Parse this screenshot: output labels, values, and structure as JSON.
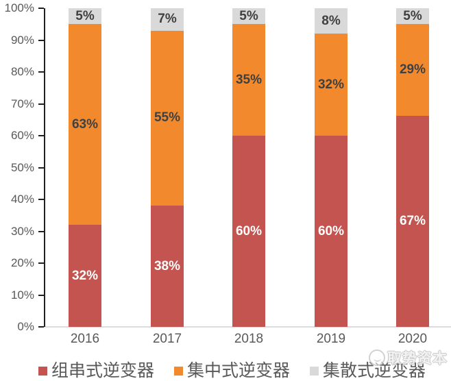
{
  "chart_data": {
    "type": "bar",
    "subtype": "stacked-100pct-column",
    "categories": [
      "2016",
      "2017",
      "2018",
      "2019",
      "2020"
    ],
    "series": [
      {
        "name": "组串式逆变器",
        "color": "#C45450",
        "label_color": "#FFFFFF",
        "values": [
          32,
          38,
          60,
          60,
          67
        ],
        "labels": [
          "32%",
          "38%",
          "60%",
          "60%",
          "67%"
        ]
      },
      {
        "name": "集中式逆变器",
        "color": "#F28A2D",
        "label_color": "#404040",
        "values": [
          63,
          55,
          35,
          32,
          29
        ],
        "labels": [
          "63%",
          "55%",
          "35%",
          "32%",
          "29%"
        ]
      },
      {
        "name": "集散式逆变器",
        "color": "#D9D9D9",
        "label_color": "#404040",
        "values": [
          5,
          7,
          5,
          8,
          5
        ],
        "labels": [
          "5%",
          "7%",
          "5%",
          "8%",
          "5%"
        ]
      }
    ],
    "y_axis": {
      "tick_labels": [
        "0%",
        "10%",
        "20%",
        "30%",
        "40%",
        "50%",
        "60%",
        "70%",
        "80%",
        "90%",
        "100%"
      ],
      "tick_values": [
        0,
        10,
        20,
        30,
        40,
        50,
        60,
        70,
        80,
        90,
        100
      ],
      "ylim": [
        0,
        100
      ]
    },
    "xlabel": "",
    "ylabel": "",
    "title": "",
    "grid": false,
    "legend_position": "bottom",
    "axis_color": "#1F1F1F",
    "baseline_color": "#DCDCDC",
    "tick_label_color": "#595959"
  },
  "watermark": {
    "text": "取势资本"
  }
}
